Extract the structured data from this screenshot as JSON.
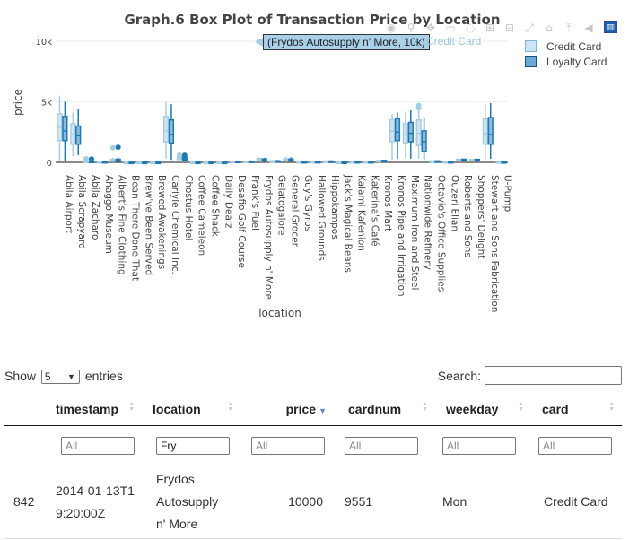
{
  "chart": {
    "title": "Graph.6 Box Plot of Transaction Price by Location",
    "tooltip": "(Frydos Autosupply n' More, 10k)",
    "tooltip_series": "Credit Card",
    "modebar_icons": [
      "camera-icon",
      "zoom-icon",
      "pan-icon",
      "box-select-icon",
      "lasso-icon",
      "zoom-in-icon",
      "zoom-out-icon",
      "autoscale-icon",
      "home-icon",
      "spike-lines-icon",
      "hover-closest-icon",
      "hover-compare-icon"
    ],
    "logo_label": "plotly-logo"
  },
  "chart_data": {
    "type": "box",
    "title": "Graph.6 Box Plot of Transaction Price by Location",
    "xlabel": "location",
    "ylabel": "price",
    "ylim": [
      0,
      10000
    ],
    "yticks": [
      0,
      5000,
      10000
    ],
    "ytick_labels": [
      "0",
      "5k",
      "10k"
    ],
    "legend_position": "top-right",
    "categories": [
      "Abila Airport",
      "Abila Scrapyard",
      "Abila Zacharo",
      "Ahaggo Museum",
      "Albert's Fine Clothing",
      "Bean There Done That",
      "Brew've Been Served",
      "Brewed Awakenings",
      "Carlyle Chemical Inc.",
      "Chostus Hotel",
      "Coffee Cameleon",
      "Coffee Shack",
      "Daily Dealz",
      "Desafio Golf Course",
      "Frank's Fuel",
      "Frydos Autosupply n' More",
      "Gelatogalore",
      "General Grocer",
      "Guy's Gyros",
      "Hallowed Grounds",
      "Hippokampos",
      "Jack's Magical Beans",
      "Kalami Kafenion",
      "Katerina's Café",
      "Kronos Mart",
      "Kronos Pipe and Irrigation",
      "Maximum Iron and Steel",
      "Nationwide Refinery",
      "Octavio's Office Supplies",
      "Ouzeri Elian",
      "Roberts and Sons",
      "Shoppers' Delight",
      "Stewart and Sons Fabrication",
      "U-Pump"
    ],
    "series": [
      {
        "name": "Credit Card",
        "color": "#a6cee3",
        "boxes": [
          [
            100,
            1800,
            2900,
            4000,
            5500
          ],
          [
            500,
            1500,
            2300,
            3200,
            4100
          ],
          [
            20,
            40,
            60,
            90,
            130
          ],
          [
            10,
            20,
            30,
            50,
            80
          ],
          [
            30,
            80,
            150,
            250,
            400
          ],
          [
            5,
            10,
            12,
            15,
            20
          ],
          [
            5,
            8,
            10,
            13,
            18
          ],
          [
            5,
            8,
            11,
            14,
            19
          ],
          [
            300,
            1700,
            2600,
            3800,
            5000
          ],
          [
            100,
            250,
            350,
            450,
            500
          ],
          [
            5,
            10,
            12,
            15,
            20
          ],
          [
            5,
            10,
            13,
            16,
            22
          ],
          [
            2,
            4,
            6,
            8,
            10
          ],
          [
            20,
            40,
            60,
            90,
            120
          ],
          [
            20,
            50,
            70,
            100,
            140
          ],
          [
            50,
            150,
            260,
            320,
            420
          ],
          [
            20,
            60,
            90,
            130,
            200
          ],
          [
            40,
            120,
            200,
            300,
            450
          ],
          [
            10,
            30,
            45,
            60,
            90
          ],
          [
            10,
            30,
            45,
            65,
            90
          ],
          [
            20,
            50,
            80,
            110,
            160
          ],
          [
            5,
            10,
            14,
            18,
            25
          ],
          [
            10,
            30,
            45,
            60,
            90
          ],
          [
            10,
            30,
            45,
            60,
            90
          ],
          [
            30,
            80,
            120,
            160,
            220
          ],
          [
            200,
            1700,
            2600,
            3500,
            4000
          ],
          [
            400,
            1600,
            2300,
            3200,
            4200
          ],
          [
            300,
            1400,
            2400,
            3500,
            4600
          ],
          [
            20,
            60,
            90,
            120,
            160
          ],
          [
            10,
            30,
            45,
            60,
            80
          ],
          [
            60,
            150,
            220,
            260,
            300
          ],
          [
            50,
            130,
            200,
            250,
            300
          ],
          [
            300,
            1500,
            2400,
            3600,
            4800
          ],
          [
            5,
            20,
            30,
            50,
            70
          ]
        ]
      },
      {
        "name": "Loyalty Card",
        "color": "#1f78b4",
        "boxes": [
          [
            100,
            1800,
            2600,
            3800,
            5000
          ],
          [
            600,
            1500,
            2200,
            3000,
            4400
          ],
          [
            20,
            40,
            60,
            90,
            130
          ],
          [
            10,
            25,
            40,
            60,
            90
          ],
          [
            30,
            90,
            160,
            260,
            420
          ],
          [
            5,
            10,
            12,
            15,
            20
          ],
          [
            5,
            8,
            10,
            13,
            18
          ],
          [
            5,
            8,
            11,
            14,
            19
          ],
          [
            200,
            1600,
            2300,
            3500,
            4800
          ],
          [
            80,
            200,
            300,
            400,
            500
          ],
          [
            5,
            10,
            12,
            15,
            20
          ],
          [
            5,
            10,
            13,
            16,
            22
          ],
          [
            2,
            4,
            6,
            8,
            10
          ],
          [
            20,
            40,
            60,
            90,
            120
          ],
          [
            20,
            50,
            70,
            100,
            140
          ],
          [
            40,
            120,
            200,
            280,
            380
          ],
          [
            20,
            60,
            90,
            130,
            200
          ],
          [
            40,
            110,
            190,
            280,
            420
          ],
          [
            10,
            30,
            45,
            60,
            90
          ],
          [
            10,
            30,
            45,
            65,
            90
          ],
          [
            20,
            50,
            80,
            110,
            160
          ],
          [
            5,
            10,
            14,
            18,
            25
          ],
          [
            10,
            30,
            45,
            60,
            90
          ],
          [
            10,
            30,
            45,
            60,
            90
          ],
          [
            30,
            80,
            120,
            160,
            220
          ],
          [
            300,
            1800,
            2500,
            3600,
            4100
          ],
          [
            300,
            1700,
            2400,
            3300,
            4300
          ],
          [
            200,
            900,
            1700,
            2600,
            3700
          ],
          [
            20,
            60,
            90,
            120,
            160
          ],
          [
            10,
            30,
            45,
            60,
            80
          ],
          [
            60,
            150,
            220,
            260,
            300
          ],
          [
            50,
            130,
            200,
            250,
            300
          ],
          [
            300,
            1500,
            2300,
            3700,
            4900
          ],
          [
            5,
            20,
            30,
            50,
            70
          ]
        ]
      }
    ],
    "outliers": [
      {
        "series": "Credit Card",
        "location": "Frydos Autosupply n' More",
        "price": 10000
      },
      {
        "series": "Credit Card",
        "location": "Albert's Fine Clothing",
        "price": 1200
      },
      {
        "series": "Loyalty Card",
        "location": "Albert's Fine Clothing",
        "price": 1250
      },
      {
        "series": "Credit Card",
        "location": "Abila Zacharo",
        "price": 300
      },
      {
        "series": "Loyalty Card",
        "location": "Abila Zacharo",
        "price": 280
      },
      {
        "series": "Credit Card",
        "location": "Chostus Hotel",
        "price": 600
      },
      {
        "series": "Loyalty Card",
        "location": "Chostus Hotel",
        "price": 580
      },
      {
        "series": "Credit Card",
        "location": "Nationwide Refinery",
        "price": 4700
      },
      {
        "series": "Credit Card",
        "location": "Nationwide Refinery",
        "price": 4500
      }
    ]
  },
  "legend": {
    "items": [
      {
        "label": "Credit Card",
        "fill": "#cde4f3",
        "border": "#7fb3d5"
      },
      {
        "label": "Loyalty Card",
        "fill": "#6aa8d8",
        "border": "#1f4f7a"
      }
    ]
  },
  "table": {
    "show_label": "Show",
    "entries_label": "entries",
    "length_value": "5",
    "search_label": "Search:",
    "search_value": "",
    "columns": [
      "timestamp",
      "location",
      "price",
      "cardnum",
      "weekday",
      "card"
    ],
    "sorted_column": "price",
    "filters": [
      "All",
      "Fry",
      "All",
      "All",
      "All",
      "All"
    ],
    "filter_placeholder": "All",
    "rows": [
      {
        "row_id": "842",
        "timestamp": "2014-01-13T19:20:00Z",
        "location": "Frydos Autosupply n' More",
        "price": "10000",
        "cardnum": "9551",
        "weekday": "Mon",
        "card": "Credit Card"
      }
    ]
  }
}
